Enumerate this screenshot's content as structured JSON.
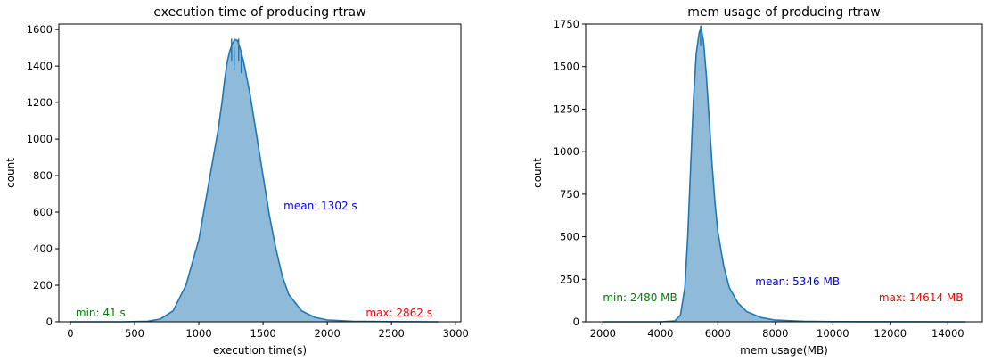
{
  "colors": {
    "fill": "#8fbbd9",
    "line": "#1f77b4",
    "min_text": "#008000",
    "mean_text": "#0000ff",
    "max_text": "#ff0000"
  },
  "chart_data": [
    {
      "type": "histogram",
      "title": "execution time of producing rtraw",
      "xlabel": "execution time(s)",
      "ylabel": "count",
      "xlim": [
        -90,
        3040
      ],
      "ylim": [
        0,
        1630
      ],
      "xticks": [
        0,
        500,
        1000,
        1500,
        2000,
        2500,
        3000
      ],
      "yticks": [
        0,
        200,
        400,
        600,
        800,
        1000,
        1200,
        1400,
        1600
      ],
      "curve": [
        [
          0,
          0
        ],
        [
          400,
          0
        ],
        [
          600,
          3
        ],
        [
          700,
          15
        ],
        [
          800,
          60
        ],
        [
          900,
          200
        ],
        [
          1000,
          450
        ],
        [
          1050,
          650
        ],
        [
          1100,
          850
        ],
        [
          1150,
          1050
        ],
        [
          1180,
          1200
        ],
        [
          1200,
          1320
        ],
        [
          1220,
          1420
        ],
        [
          1240,
          1480
        ],
        [
          1260,
          1520
        ],
        [
          1280,
          1545
        ],
        [
          1300,
          1540
        ],
        [
          1320,
          1500
        ],
        [
          1350,
          1420
        ],
        [
          1400,
          1240
        ],
        [
          1450,
          1020
        ],
        [
          1500,
          800
        ],
        [
          1550,
          580
        ],
        [
          1600,
          400
        ],
        [
          1650,
          250
        ],
        [
          1700,
          150
        ],
        [
          1800,
          60
        ],
        [
          1900,
          25
        ],
        [
          2000,
          10
        ],
        [
          2200,
          3
        ],
        [
          2500,
          1
        ],
        [
          2862,
          0
        ]
      ],
      "spikes": [
        [
          1255,
          1550
        ],
        [
          1275,
          1500
        ],
        [
          1310,
          1550
        ],
        [
          1330,
          1480
        ]
      ],
      "annotations": {
        "min": {
          "text": "min: 41 s",
          "x": 41,
          "y": 30
        },
        "mean": {
          "text": "mean: 1302 s",
          "x": 1660,
          "y": 615
        },
        "max": {
          "text": "max: 2862 s",
          "x": 2300,
          "y": 30
        }
      }
    },
    {
      "type": "histogram",
      "title": "mem usage of producing rtraw",
      "xlabel": "mem usage(MB)",
      "ylabel": "count",
      "xlim": [
        1400,
        15200
      ],
      "ylim": [
        0,
        1750
      ],
      "xticks": [
        2000,
        4000,
        6000,
        8000,
        10000,
        12000,
        14000
      ],
      "yticks": [
        0,
        250,
        500,
        750,
        1000,
        1250,
        1500,
        1750
      ],
      "curve": [
        [
          2000,
          0
        ],
        [
          4000,
          0
        ],
        [
          4500,
          5
        ],
        [
          4700,
          40
        ],
        [
          4850,
          200
        ],
        [
          4950,
          500
        ],
        [
          5050,
          900
        ],
        [
          5150,
          1300
        ],
        [
          5250,
          1580
        ],
        [
          5350,
          1700
        ],
        [
          5420,
          1730
        ],
        [
          5500,
          1650
        ],
        [
          5600,
          1450
        ],
        [
          5700,
          1180
        ],
        [
          5800,
          920
        ],
        [
          5900,
          700
        ],
        [
          6000,
          530
        ],
        [
          6200,
          330
        ],
        [
          6400,
          200
        ],
        [
          6700,
          110
        ],
        [
          7000,
          60
        ],
        [
          7500,
          25
        ],
        [
          8000,
          10
        ],
        [
          9000,
          3
        ],
        [
          10000,
          1
        ],
        [
          14614,
          0
        ]
      ],
      "spikes": [
        [
          5400,
          1740
        ]
      ],
      "annotations": {
        "min": {
          "text": "min: 2480 MB",
          "x": 2000,
          "y": 120
        },
        "mean": {
          "text": "mean: 5346 MB",
          "x": 7300,
          "y": 215
        },
        "max": {
          "text": "max: 14614 MB",
          "x": 11600,
          "y": 120
        }
      }
    }
  ]
}
